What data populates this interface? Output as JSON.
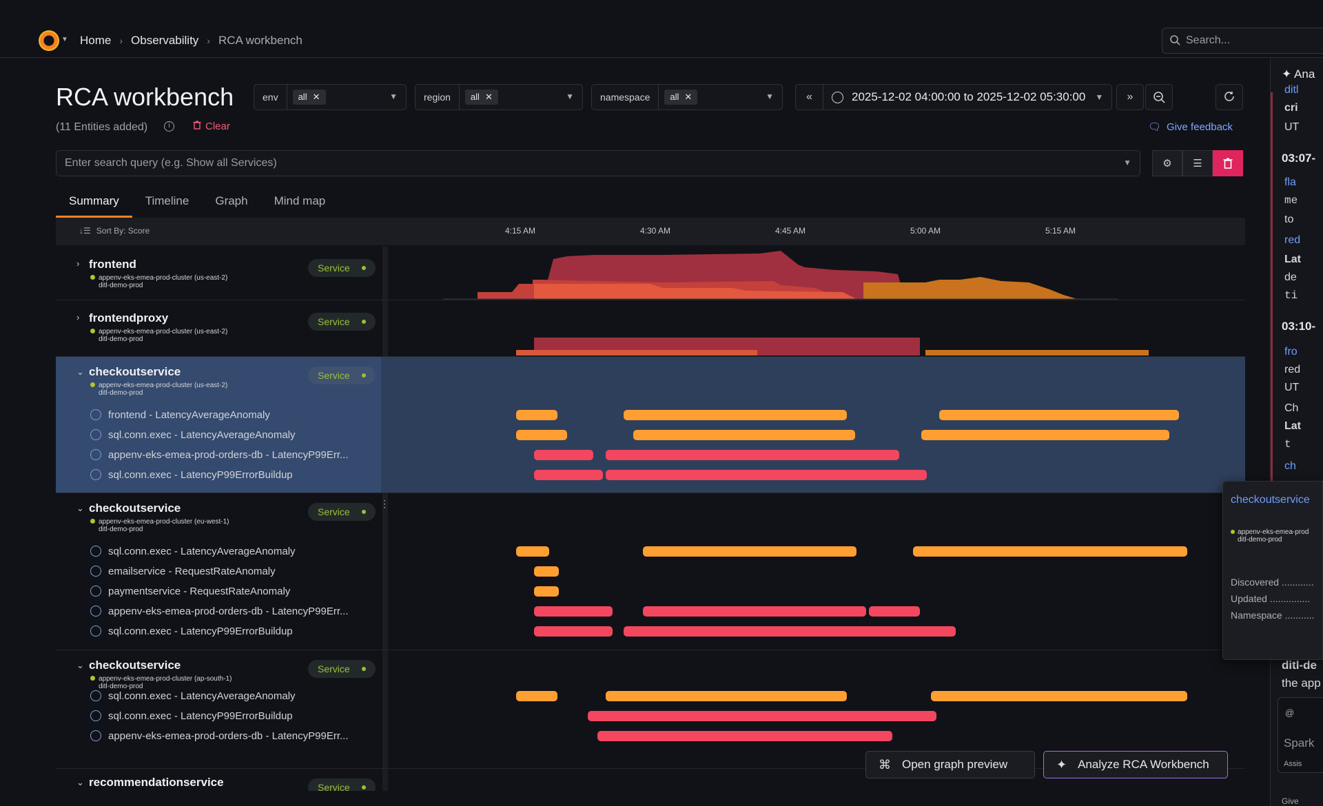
{
  "breadcrumb": {
    "items": [
      "Home",
      "Observability",
      "RCA workbench"
    ]
  },
  "search": {
    "placeholder": "Search..."
  },
  "page": {
    "title": "RCA workbench",
    "entities": "(11 Entities added)",
    "clear_label": "Clear",
    "feedback_label": "Give feedback",
    "query_placeholder": "Enter search query (e.g. Show all Services)"
  },
  "filters": [
    {
      "label": "env",
      "value": "all"
    },
    {
      "label": "region",
      "value": "all"
    },
    {
      "label": "namespace",
      "value": "all"
    }
  ],
  "time_range": {
    "text": "2025-12-02 04:00:00 to 2025-12-02 05:30:00"
  },
  "tabs": [
    "Summary",
    "Timeline",
    "Graph",
    "Mind map"
  ],
  "sort_label": "Sort By: Score",
  "ticks": [
    "4:15 AM",
    "4:30 AM",
    "4:45 AM",
    "5:00 AM",
    "5:15 AM"
  ],
  "groups": [
    {
      "name": "frontend",
      "cluster": "appenv-eks-emea-prod-cluster (us-east-2)",
      "ns": "ditl-demo-prod",
      "badge": "Service",
      "expanded": false,
      "signals": []
    },
    {
      "name": "frontendproxy",
      "cluster": "appenv-eks-emea-prod-cluster (us-east-2)",
      "ns": "ditl-demo-prod",
      "badge": "Service",
      "expanded": false,
      "signals": []
    },
    {
      "name": "checkoutservice",
      "cluster": "appenv-eks-emea-prod-cluster (us-east-2)",
      "ns": "ditl-demo-prod",
      "badge": "Service",
      "expanded": true,
      "signals": [
        "frontend - LatencyAverageAnomaly",
        "sql.conn.exec - LatencyAverageAnomaly",
        "appenv-eks-emea-prod-orders-db - LatencyP99Err...",
        "sql.conn.exec - LatencyP99ErrorBuildup"
      ]
    },
    {
      "name": "checkoutservice",
      "cluster": "appenv-eks-emea-prod-cluster (eu-west-1)",
      "ns": "ditl-demo-prod",
      "badge": "Service",
      "expanded": true,
      "signals": [
        "sql.conn.exec - LatencyAverageAnomaly",
        "emailservice - RequestRateAnomaly",
        "paymentservice - RequestRateAnomaly",
        "appenv-eks-emea-prod-orders-db - LatencyP99Err...",
        "sql.conn.exec - LatencyP99ErrorBuildup"
      ]
    },
    {
      "name": "checkoutservice",
      "cluster": "appenv-eks-emea-prod-cluster (ap-south-1)",
      "ns": "ditl-demo-prod",
      "badge": "Service",
      "expanded": true,
      "signals": [
        "sql.conn.exec - LatencyAverageAnomaly",
        "sql.conn.exec - LatencyP99ErrorBuildup",
        "appenv-eks-emea-prod-orders-db - LatencyP99Err..."
      ]
    },
    {
      "name": "recommendationservice",
      "cluster": "",
      "ns": "",
      "badge": "Service",
      "expanded": true,
      "signals": []
    }
  ],
  "actions": {
    "graph_preview": "Open graph preview",
    "analyze": "Analyze RCA Workbench"
  },
  "right_panel": {
    "head": "Ana",
    "t1": "03:07-",
    "t2": "03:10-",
    "frag": [
      "ditl",
      "cri",
      "UT",
      "fla",
      "me",
      "to",
      "red",
      "Lat",
      "de",
      "ti",
      "fro",
      "red",
      "UT",
      "Ch",
      "Lat",
      "t",
      "ch"
    ],
    "bottom1": "ditl-de",
    "bottom2": "the app",
    "spark": "Spark",
    "assist": "Assis",
    "give": "Give"
  },
  "popover": {
    "title": "checkoutservice",
    "cluster": "appenv-eks-emea-prod",
    "ns": "ditl-demo-prod",
    "rows": [
      "Discovered ............",
      "Updated ...............",
      "Namespace ..........."
    ]
  },
  "colors": {
    "accent": "#f5821f",
    "orange": "#ff9f32",
    "red": "#f2475f",
    "link": "#6d9eff"
  }
}
